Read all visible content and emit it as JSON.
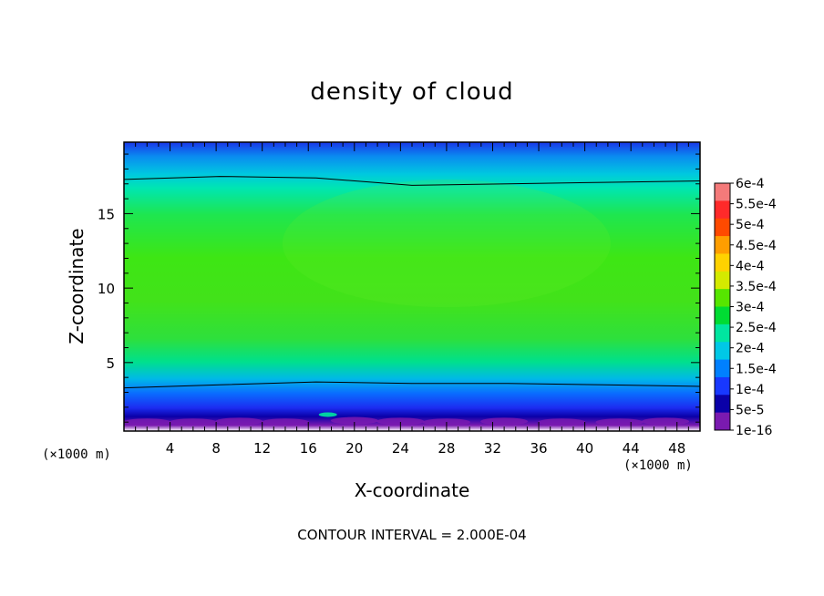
{
  "chart_data": {
    "type": "heatmap",
    "title": "density of cloud",
    "xlabel": "X-coordinate",
    "ylabel": "Z-coordinate",
    "x_unit": "(×1000 m)",
    "footer": "CONTOUR INTERVAL = 2.000E-04",
    "x_ticks": [
      4,
      8,
      12,
      16,
      20,
      24,
      28,
      32,
      36,
      40,
      44,
      48
    ],
    "y_ticks": [
      5,
      10,
      15
    ],
    "xlim": [
      0,
      50
    ],
    "ylim": [
      0.4,
      19.8
    ],
    "colorbar": {
      "labels": [
        "6e-4",
        "5.5e-4",
        "5e-4",
        "4.5e-4",
        "4e-4",
        "3.5e-4",
        "3e-4",
        "2.5e-4",
        "2e-4",
        "1.5e-4",
        "1e-4",
        "5e-5",
        "1e-16"
      ],
      "colors": [
        "#f47a7a",
        "#ff2a2a",
        "#ff4a00",
        "#ff9e00",
        "#ffd200",
        "#d4ea00",
        "#56e600",
        "#00dc33",
        "#00e6a0",
        "#00c8e6",
        "#0080ff",
        "#1838ff",
        "#0a00a8",
        "#7a1ab0"
      ]
    },
    "contour_lines": [
      {
        "level": "2e-4",
        "z": [
          17.3,
          17.5,
          17.4,
          16.9,
          17.0,
          17.1,
          17.2
        ]
      },
      {
        "level": "2e-4",
        "z": [
          3.3,
          3.5,
          3.7,
          3.6,
          3.6,
          3.5,
          3.4
        ]
      }
    ]
  }
}
